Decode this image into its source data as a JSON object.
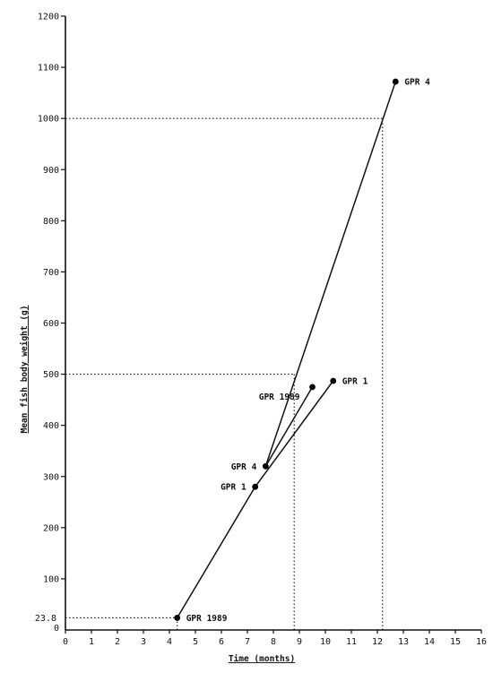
{
  "chart_data": {
    "type": "line",
    "xlabel": "Time (months)",
    "ylabel": "Mean fish body weight (g)",
    "xlim": [
      0,
      16
    ],
    "ylim": [
      0,
      1200
    ],
    "xticks": [
      0,
      1,
      2,
      3,
      4,
      5,
      6,
      7,
      8,
      9,
      10,
      11,
      12,
      13,
      14,
      15,
      16
    ],
    "yticks": [
      100,
      200,
      300,
      400,
      500,
      600,
      700,
      800,
      900,
      1000,
      1100,
      1200
    ],
    "extra_ytick_labels": [
      {
        "value": 23.8,
        "label": "23.8"
      },
      {
        "value": 0,
        "label": "0"
      }
    ],
    "grid": false,
    "lines": [
      {
        "from": [
          4.3,
          23.8
        ],
        "to": [
          7.3,
          280
        ]
      },
      {
        "from": [
          7.3,
          280
        ],
        "to": [
          10.3,
          487
        ]
      },
      {
        "from": [
          7.7,
          320
        ],
        "to": [
          9.5,
          475
        ]
      },
      {
        "from": [
          7.7,
          320
        ],
        "to": [
          12.7,
          1072
        ]
      }
    ],
    "points": [
      {
        "x": 4.3,
        "y": 23.8,
        "label": "GPR 1989",
        "label_side": "right"
      },
      {
        "x": 7.3,
        "y": 280,
        "label": "GPR 1",
        "label_side": "left"
      },
      {
        "x": 7.7,
        "y": 320,
        "label": "GPR 4",
        "label_side": "left"
      },
      {
        "x": 9.5,
        "y": 475,
        "label": "GPR 1989",
        "label_side": "below-left"
      },
      {
        "x": 10.3,
        "y": 487,
        "label": "GPR 1",
        "label_side": "right"
      },
      {
        "x": 12.7,
        "y": 1072,
        "label": "GPR 4",
        "label_side": "right"
      }
    ],
    "reference_lines": [
      {
        "y": 23.8,
        "x_from": 0,
        "x_to": 4.3
      },
      {
        "x": 4.3,
        "y_from": 0,
        "y_to": 23.8
      },
      {
        "y": 500,
        "x_from": 0,
        "x_to": 8.8
      },
      {
        "x": 8.8,
        "y_from": 0,
        "y_to": 500
      },
      {
        "y": 1000,
        "x_from": 0,
        "x_to": 12.2
      },
      {
        "x": 12.2,
        "y_from": 0,
        "y_to": 1000
      }
    ]
  }
}
